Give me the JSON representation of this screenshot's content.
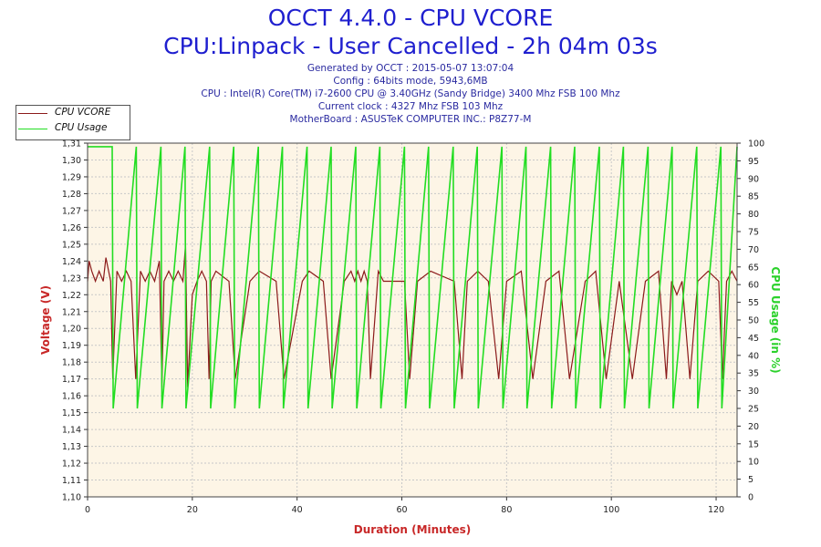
{
  "header": {
    "title": "OCCT 4.4.0 - CPU VCORE",
    "subtitle": "CPU:Linpack - User Cancelled - 2h 04m 03s",
    "info_lines": [
      "Generated by OCCT : 2015-05-07 13:07:04",
      "Config : 64bits mode, 5943,6MB",
      "CPU : Intel(R) Core(TM) i7-2600 CPU @ 3.40GHz (Sandy Bridge) 3400 Mhz FSB 100 Mhz",
      "Current clock : 4327 Mhz FSB 103 Mhz",
      "MotherBoard : ASUSTeK COMPUTER INC.: P8Z77-M"
    ]
  },
  "legend": [
    {
      "label": "CPU VCORE",
      "color": "#8b1a1a"
    },
    {
      "label": "CPU Usage",
      "color": "#22dd22"
    }
  ],
  "chart_data": {
    "type": "line",
    "xlabel": "Duration (Minutes)",
    "ylabel_left": "Voltage (V)",
    "ylabel_right": "CPU Usage (in %)",
    "xlim": [
      0,
      124
    ],
    "ylim_left": [
      1.1,
      1.31
    ],
    "ylim_right": [
      0,
      100
    ],
    "x_ticks": [
      0,
      20,
      40,
      60,
      80,
      100,
      120
    ],
    "y_left_ticks": [
      "1,10",
      "1,11",
      "1,12",
      "1,13",
      "1,14",
      "1,15",
      "1,16",
      "1,17",
      "1,18",
      "1,19",
      "1,20",
      "1,21",
      "1,22",
      "1,23",
      "1,24",
      "1,25",
      "1,26",
      "1,27",
      "1,28",
      "1,29",
      "1,30",
      "1,31"
    ],
    "y_right_ticks": [
      "0",
      "5",
      "10",
      "15",
      "20",
      "25",
      "30",
      "35",
      "40",
      "45",
      "50",
      "55",
      "60",
      "65",
      "70",
      "75",
      "80",
      "85",
      "90",
      "95",
      "100"
    ],
    "grid": true,
    "legend_position": "top-left outside",
    "colors": {
      "vcore": "#8b1a1a",
      "usage": "#22dd22",
      "plot_bg": "#fdf5e6",
      "axis_label": "#c82828",
      "right_axis_label": "#2bd12b"
    },
    "series": [
      {
        "name": "CPU VCORE",
        "axis": "left",
        "x": [
          0,
          0.3,
          0.8,
          1.5,
          2.2,
          3.0,
          3.5,
          4.4,
          4.8,
          5.6,
          6.5,
          7.4,
          8.3,
          9.2,
          10.1,
          11.0,
          11.9,
          12.8,
          13.7,
          14.2,
          14.6,
          15.5,
          16.4,
          17.3,
          18.2,
          18.7,
          19.1,
          20.0,
          20.9,
          21.8,
          22.7,
          23.2,
          23.6,
          24.5,
          27.0,
          28.2,
          31.0,
          32.8,
          36.0,
          37.5,
          41.0,
          42.3,
          45.0,
          46.5,
          49.0,
          50.3,
          51.0,
          51.6,
          52.2,
          52.8,
          53.4,
          54.0,
          55.5,
          56.5,
          60.5,
          61.5,
          63.0,
          65.5,
          70.0,
          71.5,
          72.5,
          74.5,
          76.5,
          78.5,
          80.0,
          82.8,
          85.0,
          87.5,
          90.0,
          92.0,
          95.0,
          97.0,
          99.0,
          101.5,
          104.0,
          106.5,
          109.0,
          110.5,
          111.5,
          112.5,
          113.5,
          115.0,
          116.5,
          118.5,
          120.5,
          121.2,
          122.0,
          123.0,
          124.0
        ],
        "y": [
          1.228,
          1.24,
          1.234,
          1.228,
          1.234,
          1.228,
          1.242,
          1.228,
          1.17,
          1.234,
          1.228,
          1.234,
          1.228,
          1.17,
          1.234,
          1.228,
          1.234,
          1.228,
          1.24,
          1.165,
          1.228,
          1.234,
          1.228,
          1.234,
          1.228,
          1.25,
          1.165,
          1.22,
          1.228,
          1.234,
          1.228,
          1.17,
          1.228,
          1.234,
          1.228,
          1.17,
          1.228,
          1.234,
          1.228,
          1.17,
          1.228,
          1.234,
          1.228,
          1.17,
          1.228,
          1.234,
          1.228,
          1.234,
          1.228,
          1.234,
          1.228,
          1.17,
          1.234,
          1.228,
          1.228,
          1.17,
          1.228,
          1.234,
          1.228,
          1.17,
          1.228,
          1.234,
          1.228,
          1.17,
          1.228,
          1.234,
          1.17,
          1.228,
          1.234,
          1.17,
          1.228,
          1.234,
          1.17,
          1.228,
          1.17,
          1.228,
          1.234,
          1.17,
          1.228,
          1.22,
          1.228,
          1.17,
          1.228,
          1.234,
          1.228,
          1.17,
          1.228,
          1.234,
          1.228
        ]
      },
      {
        "name": "CPU Usage",
        "axis": "right",
        "x": [
          0,
          4.7,
          4.9,
          9.3,
          9.5,
          14.0,
          14.2,
          18.6,
          18.8,
          23.3,
          23.5,
          27.9,
          28.1,
          32.6,
          32.8,
          37.2,
          37.4,
          41.9,
          42.1,
          46.5,
          46.7,
          51.2,
          51.4,
          55.8,
          56.0,
          60.5,
          60.7,
          65.1,
          65.3,
          69.8,
          70.0,
          74.4,
          74.6,
          79.1,
          79.3,
          83.7,
          83.9,
          88.4,
          88.6,
          93.0,
          93.2,
          97.7,
          97.9,
          102.3,
          102.5,
          107.0,
          107.2,
          111.6,
          111.8,
          116.3,
          116.5,
          120.9,
          121.1,
          124.0
        ],
        "y": [
          99,
          99,
          25,
          99,
          25,
          99,
          25,
          99,
          25,
          99,
          25,
          99,
          25,
          99,
          25,
          99,
          25,
          99,
          25,
          99,
          25,
          99,
          25,
          99,
          25,
          99,
          25,
          99,
          25,
          99,
          25,
          99,
          25,
          99,
          25,
          99,
          25,
          99,
          25,
          99,
          25,
          99,
          25,
          99,
          25,
          99,
          25,
          99,
          25,
          99,
          25,
          99,
          25,
          99
        ]
      }
    ]
  }
}
